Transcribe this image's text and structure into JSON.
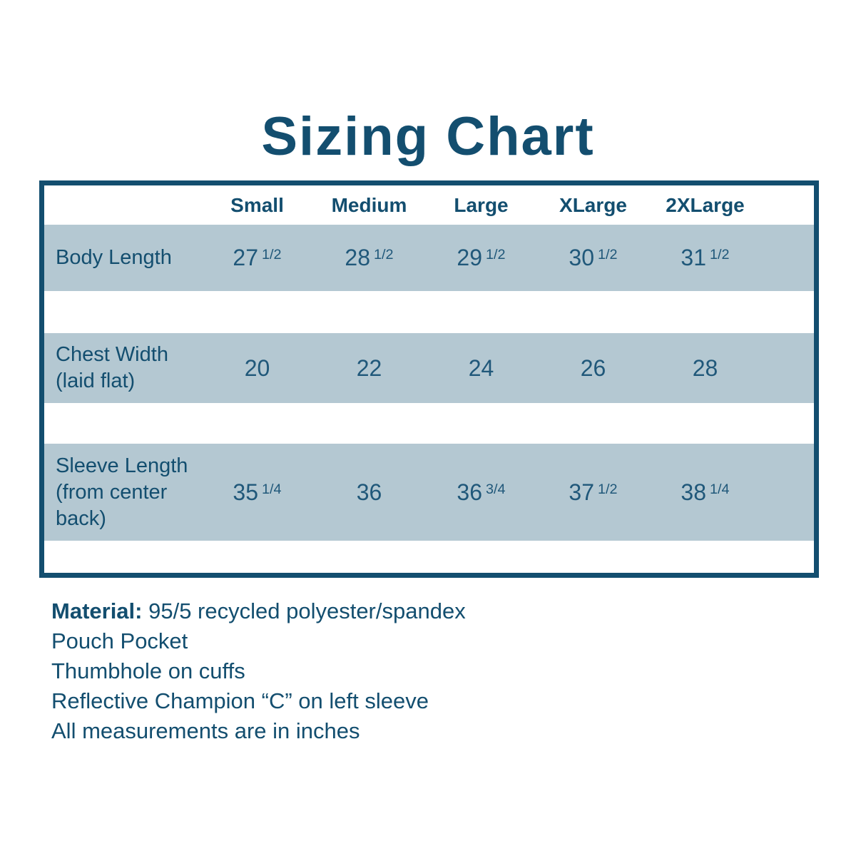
{
  "title": "Sizing Chart",
  "colors": {
    "accent": "#134e6f",
    "values_text": "#20587a",
    "row_band": "#b4c8d2",
    "background": "#ffffff"
  },
  "chart_data": {
    "type": "table",
    "title": "Sizing Chart",
    "columns": [
      "Small",
      "Medium",
      "Large",
      "XLarge",
      "2XLarge"
    ],
    "rows": [
      {
        "label_lines": [
          "Body Length"
        ],
        "values": [
          {
            "whole": "27",
            "frac": "1/2"
          },
          {
            "whole": "28",
            "frac": "1/2"
          },
          {
            "whole": "29",
            "frac": "1/2"
          },
          {
            "whole": "30",
            "frac": "1/2"
          },
          {
            "whole": "31",
            "frac": "1/2"
          }
        ]
      },
      {
        "label_lines": [
          "Chest Width",
          "(laid flat)"
        ],
        "values": [
          {
            "whole": "20",
            "frac": ""
          },
          {
            "whole": "22",
            "frac": ""
          },
          {
            "whole": "24",
            "frac": ""
          },
          {
            "whole": "26",
            "frac": ""
          },
          {
            "whole": "28",
            "frac": ""
          }
        ]
      },
      {
        "label_lines": [
          "Sleeve Length",
          "(from center",
          "back)"
        ],
        "values": [
          {
            "whole": "35",
            "frac": "1/4"
          },
          {
            "whole": "36",
            "frac": ""
          },
          {
            "whole": "36",
            "frac": "3/4"
          },
          {
            "whole": "37",
            "frac": "1/2"
          },
          {
            "whole": "38",
            "frac": "1/4"
          }
        ]
      }
    ],
    "units": "inches"
  },
  "notes": [
    {
      "lead": "Material:",
      "text": " 95/5 recycled polyester/spandex"
    },
    {
      "lead": "",
      "text": "Pouch Pocket"
    },
    {
      "lead": "",
      "text": "Thumbhole on cuffs"
    },
    {
      "lead": "",
      "text": "Reflective Champion “C” on left sleeve"
    },
    {
      "lead": "",
      "text": "All measurements are in inches"
    }
  ]
}
